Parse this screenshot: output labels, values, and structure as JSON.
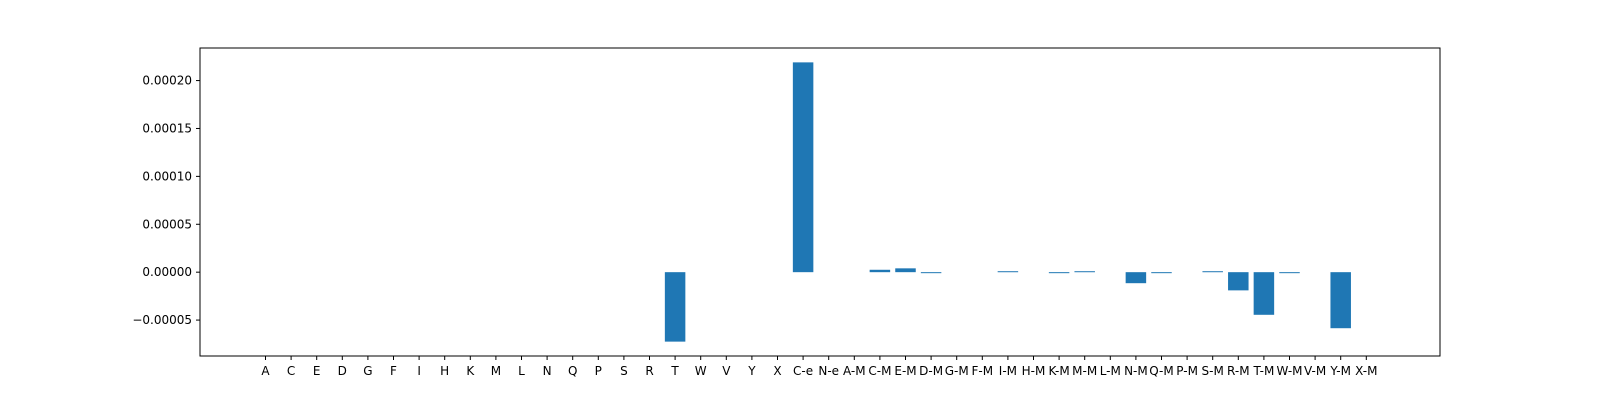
{
  "chart_data": {
    "type": "bar",
    "title": "",
    "xlabel": "",
    "ylabel": "",
    "ylim": [
      -8.75e-05,
      0.000234
    ],
    "yticks": [
      -5e-05,
      0.0,
      5e-05,
      0.0001,
      0.00015,
      0.0002
    ],
    "ytick_labels": [
      "−0.00005",
      "0.00000",
      "0.00005",
      "0.00010",
      "0.00015",
      "0.00020"
    ],
    "grid": false,
    "legend": "none",
    "bar_color": "#1f77b4",
    "categories": [
      "A",
      "C",
      "E",
      "D",
      "G",
      "F",
      "I",
      "H",
      "K",
      "M",
      "L",
      "N",
      "Q",
      "P",
      "S",
      "R",
      "T",
      "W",
      "V",
      "Y",
      "X",
      "C-e",
      "N-e",
      "A-M",
      "C-M",
      "E-M",
      "D-M",
      "G-M",
      "F-M",
      "I-M",
      "H-M",
      "K-M",
      "M-M",
      "L-M",
      "N-M",
      "Q-M",
      "P-M",
      "S-M",
      "R-M",
      "T-M",
      "W-M",
      "V-M",
      "Y-M",
      "X-M"
    ],
    "values": [
      0,
      0,
      0,
      0,
      0,
      0,
      0,
      0,
      0,
      0,
      0,
      0,
      0,
      0,
      0,
      0,
      -7.25e-05,
      0,
      0,
      0,
      0,
      0.000219,
      0,
      0,
      2.5e-06,
      4e-06,
      -1e-06,
      0,
      0,
      1e-06,
      0,
      -1e-06,
      1e-06,
      0,
      -1.15e-05,
      -1e-06,
      0,
      1e-06,
      -1.9e-05,
      -4.45e-05,
      -1e-06,
      0,
      -5.85e-05,
      0
    ]
  }
}
